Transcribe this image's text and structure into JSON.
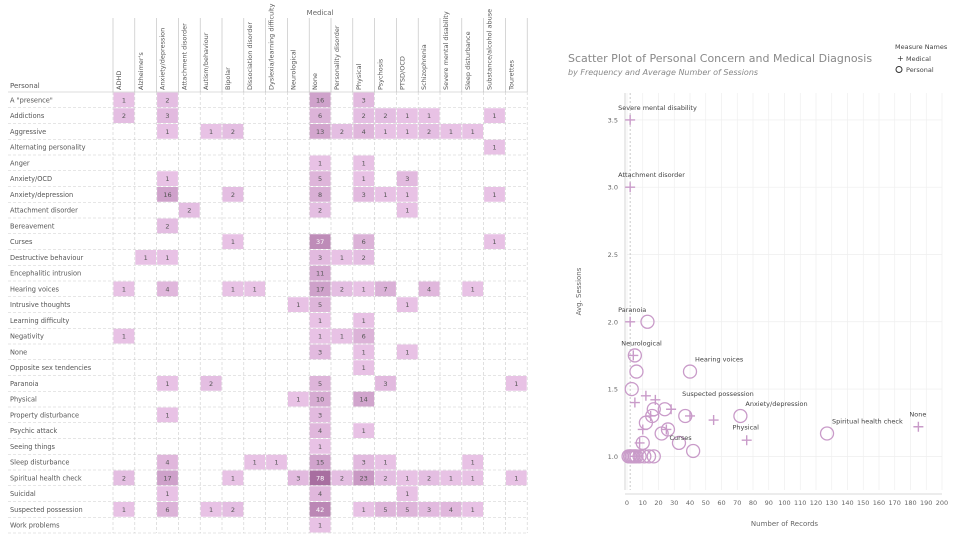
{
  "chart_data": [
    {
      "type": "heatmap",
      "column_group_label": "Medical",
      "row_header_label": "Personal",
      "columns": [
        "ADHD",
        "Alzheimer's",
        "Anxiety/depression",
        "Attachment disorder",
        "Autism/behaviour",
        "Bipolar",
        "Dissociation disorder",
        "Dyslexia/learning difficulty",
        "Neurological",
        "None",
        "Personality disorder",
        "Physical",
        "Psychosis",
        "PTSD/OCD",
        "Schizophrenia",
        "Severe mental disability",
        "Sleep disturbance",
        "Substance/alcohol abuse",
        "Tourettes"
      ],
      "rows": [
        {
          "label": "A \"presence\"",
          "cells": {
            "0": 1,
            "2": 2,
            "9": 16,
            "11": 3
          }
        },
        {
          "label": "Addictions",
          "cells": {
            "0": 2,
            "2": 3,
            "9": 6,
            "11": 2,
            "12": 2,
            "13": 1,
            "14": 1,
            "17": 1
          }
        },
        {
          "label": "Aggressive",
          "cells": {
            "2": 1,
            "4": 1,
            "5": 2,
            "9": 13,
            "10": 2,
            "11": 4,
            "12": 1,
            "13": 1,
            "14": 2,
            "15": 1,
            "16": 1
          }
        },
        {
          "label": "Alternating personality",
          "cells": {
            "17": 1
          }
        },
        {
          "label": "Anger",
          "cells": {
            "9": 1,
            "11": 1
          }
        },
        {
          "label": "Anxiety/OCD",
          "cells": {
            "2": 1,
            "9": 5,
            "11": 1,
            "13": 3
          }
        },
        {
          "label": "Anxiety/depression",
          "cells": {
            "2": 16,
            "5": 2,
            "9": 8,
            "11": 3,
            "12": 1,
            "13": 1,
            "17": 1
          }
        },
        {
          "label": "Attachment disorder",
          "cells": {
            "3": 2,
            "9": 2,
            "13": 1
          }
        },
        {
          "label": "Bereavement",
          "cells": {
            "2": 2
          }
        },
        {
          "label": "Curses",
          "cells": {
            "5": 1,
            "9": 37,
            "11": 6,
            "17": 1
          }
        },
        {
          "label": "Destructive behaviour",
          "cells": {
            "1": 1,
            "2": 1,
            "9": 3,
            "10": 1,
            "11": 2
          }
        },
        {
          "label": "Encephalitic intrusion",
          "cells": {
            "9": 11
          }
        },
        {
          "label": "Hearing voices",
          "cells": {
            "0": 1,
            "2": 4,
            "5": 1,
            "6": 1,
            "9": 17,
            "10": 2,
            "11": 1,
            "12": 7,
            "14": 4,
            "16": 1
          }
        },
        {
          "label": "Intrusive thoughts",
          "cells": {
            "8": 1,
            "9": 5,
            "13": 1
          }
        },
        {
          "label": "Learning difficulty",
          "cells": {
            "9": 1,
            "11": 1
          }
        },
        {
          "label": "Negativity",
          "cells": {
            "0": 1,
            "9": 1,
            "10": 1,
            "11": 6
          }
        },
        {
          "label": "None",
          "cells": {
            "9": 3,
            "11": 1,
            "13": 1
          }
        },
        {
          "label": "Opposite sex tendencies",
          "cells": {
            "11": 1
          }
        },
        {
          "label": "Paranoia",
          "cells": {
            "2": 1,
            "4": 2,
            "9": 5,
            "12": 3,
            "18": 1
          }
        },
        {
          "label": "Physical",
          "cells": {
            "8": 1,
            "9": 10,
            "11": 14
          }
        },
        {
          "label": "Property disturbance",
          "cells": {
            "2": 1,
            "9": 3
          }
        },
        {
          "label": "Psychic attack",
          "cells": {
            "9": 4,
            "11": 1
          }
        },
        {
          "label": "Seeing things",
          "cells": {
            "9": 1
          }
        },
        {
          "label": "Sleep disturbance",
          "cells": {
            "2": 4,
            "6": 1,
            "7": 1,
            "9": 15,
            "11": 3,
            "12": 1,
            "16": 1
          }
        },
        {
          "label": "Spiritual health check",
          "cells": {
            "0": 2,
            "2": 17,
            "5": 1,
            "8": 3,
            "9": 78,
            "10": 2,
            "11": 23,
            "12": 2,
            "13": 1,
            "14": 2,
            "15": 1,
            "16": 1,
            "18": 1
          }
        },
        {
          "label": "Suicidal",
          "cells": {
            "2": 1,
            "9": 4,
            "13": 1
          }
        },
        {
          "label": "Suspected possession",
          "cells": {
            "0": 1,
            "2": 6,
            "4": 1,
            "5": 2,
            "9": 42,
            "11": 1,
            "12": 5,
            "13": 5,
            "14": 3,
            "15": 4,
            "16": 1
          }
        },
        {
          "label": "Work problems",
          "cells": {
            "9": 1
          }
        }
      ]
    },
    {
      "type": "scatter",
      "title": "Scatter Plot of Personal Concern and Medical Diagnosis",
      "subtitle": "by Frequency and Average Number of Sessions",
      "xlabel": "Number of Records",
      "ylabel": "Avg. Sessions",
      "xlim": [
        0,
        200
      ],
      "ylim": [
        0.75,
        3.7
      ],
      "xticks": [
        0,
        10,
        20,
        30,
        40,
        50,
        60,
        70,
        80,
        90,
        100,
        110,
        120,
        130,
        140,
        150,
        160,
        170,
        180,
        190,
        200
      ],
      "yticks": [
        1.0,
        1.5,
        2.0,
        2.5,
        3.0,
        3.5
      ],
      "legend": {
        "title": "Measure Names",
        "items": [
          {
            "symbol": "+",
            "label": "Medical"
          },
          {
            "symbol": "o",
            "label": "Personal"
          }
        ],
        "position": "top-right"
      },
      "series": [
        {
          "name": "Medical",
          "marker": "plus",
          "points": [
            {
              "x": 2,
              "y": 3.5,
              "label": "Severe mental disability"
            },
            {
              "x": 2,
              "y": 3.0,
              "label": "Attachment disorder"
            },
            {
              "x": 2,
              "y": 2.0,
              "label": "Paranoia"
            },
            {
              "x": 4,
              "y": 1.75,
              "label": "Neurological"
            },
            {
              "x": 5,
              "y": 1.4
            },
            {
              "x": 5,
              "y": 1.0
            },
            {
              "x": 7,
              "y": 1.0
            },
            {
              "x": 8,
              "y": 1.1
            },
            {
              "x": 10,
              "y": 1.2
            },
            {
              "x": 12,
              "y": 1.45
            },
            {
              "x": 15,
              "y": 1.3
            },
            {
              "x": 18,
              "y": 1.42
            },
            {
              "x": 25,
              "y": 1.2
            },
            {
              "x": 28,
              "y": 1.35
            },
            {
              "x": 40,
              "y": 1.3
            },
            {
              "x": 55,
              "y": 1.27
            },
            {
              "x": 76,
              "y": 1.12
            },
            {
              "x": 185,
              "y": 1.22,
              "label": "None"
            }
          ]
        },
        {
          "name": "Personal",
          "marker": "circle",
          "points": [
            {
              "x": 1,
              "y": 1.0
            },
            {
              "x": 2,
              "y": 1.0
            },
            {
              "x": 3,
              "y": 1.0
            },
            {
              "x": 4,
              "y": 1.0
            },
            {
              "x": 5,
              "y": 1.0
            },
            {
              "x": 6,
              "y": 1.0
            },
            {
              "x": 8,
              "y": 1.0
            },
            {
              "x": 11,
              "y": 1.0
            },
            {
              "x": 14,
              "y": 1.0
            },
            {
              "x": 17,
              "y": 1.0
            },
            {
              "x": 3,
              "y": 1.5
            },
            {
              "x": 6,
              "y": 1.63
            },
            {
              "x": 5,
              "y": 1.75
            },
            {
              "x": 13,
              "y": 2.0
            },
            {
              "x": 10,
              "y": 1.1
            },
            {
              "x": 12,
              "y": 1.25
            },
            {
              "x": 16,
              "y": 1.3
            },
            {
              "x": 22,
              "y": 1.17
            },
            {
              "x": 26,
              "y": 1.2
            },
            {
              "x": 33,
              "y": 1.1
            },
            {
              "x": 17,
              "y": 1.35
            },
            {
              "x": 24,
              "y": 1.35
            },
            {
              "x": 37,
              "y": 1.3
            },
            {
              "x": 40,
              "y": 1.63,
              "label": "Hearing voices"
            },
            {
              "x": 42,
              "y": 1.04
            },
            {
              "x": 72,
              "y": 1.3,
              "label": "Anxiety/depression"
            },
            {
              "x": 127,
              "y": 1.17,
              "label": "Spiritual health check"
            }
          ]
        }
      ],
      "annotations": [
        {
          "text": "Suspected possession",
          "x": 35,
          "y": 1.45
        },
        {
          "text": "Physical",
          "x": 67,
          "y": 1.2
        },
        {
          "text": "Curses",
          "x": 27,
          "y": 1.12
        }
      ]
    }
  ]
}
